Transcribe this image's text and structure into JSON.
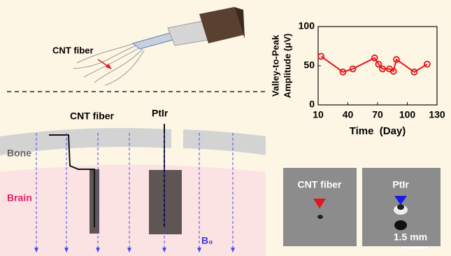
{
  "chart_data": {
    "type": "line",
    "xlabel": "Time  (Day)",
    "ylabel": [
      "Valley-to-Peak",
      "Amplitude (μV)"
    ],
    "x": [
      13,
      35,
      45,
      67,
      71,
      75,
      82,
      86,
      89,
      107,
      120
    ],
    "values": [
      62,
      42,
      46,
      60,
      52,
      46,
      46,
      43,
      58,
      42,
      52
    ],
    "color": "#e3161b",
    "xlim": [
      10,
      130
    ],
    "xticks": [
      10,
      40,
      70,
      100,
      130
    ],
    "ylim": [
      0,
      100
    ],
    "yticks": [
      0,
      50,
      100
    ]
  },
  "diagram": {
    "top_label": "CNT fiber",
    "cnt_label": "CNT fiber",
    "ptir_label": "PtIr",
    "bone_label": "Bone",
    "brain_label": "Brain",
    "field_label": "B₀"
  },
  "mri": {
    "left_label": "CNT fiber",
    "right_label": "PtIr",
    "scale_label": "1.5 mm"
  }
}
